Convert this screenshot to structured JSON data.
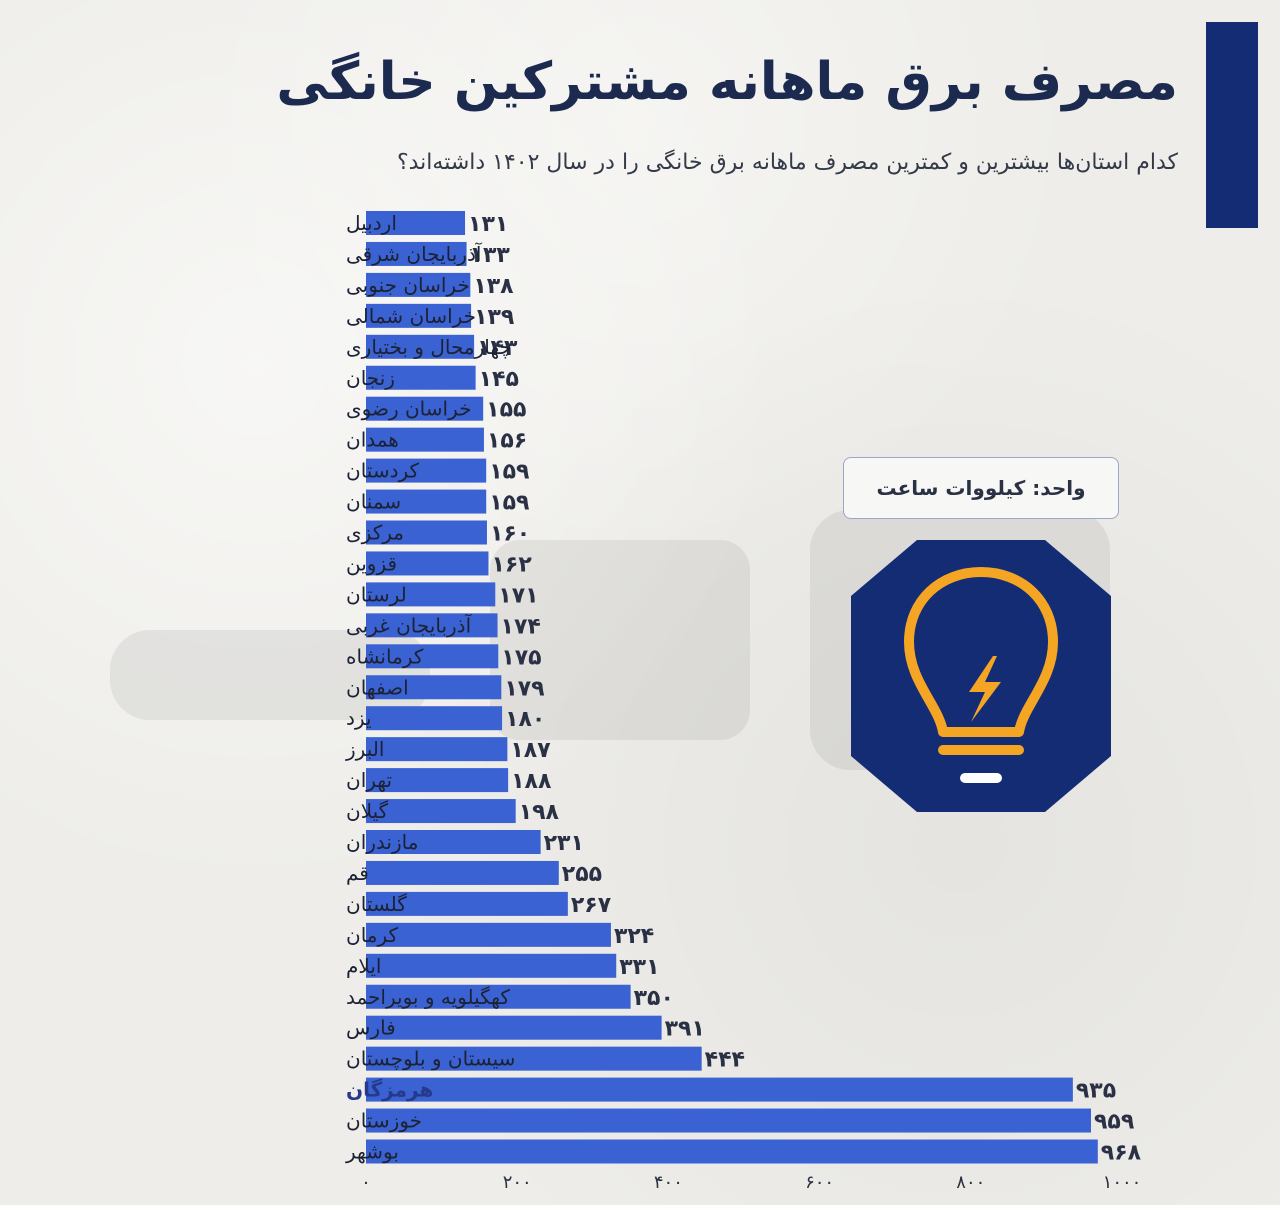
{
  "header": {
    "title": "مصرف برق ماهانه مشترکین خانگی",
    "subtitle": "کدام استان‌ها بیشترین و کمترین مصرف ماهانه برق خانگی را در سال ۱۴۰۲ داشته‌اند؟"
  },
  "unit_box": {
    "label": "واحد: کیلووات ساعت"
  },
  "icons": {
    "badge": "lightbulb-bolt-icon"
  },
  "colors": {
    "bar": "#3a62d2",
    "accent_bar": "#132c74",
    "badge_bg": "#132c74",
    "bulb": "#f5a524",
    "highlight_label": "#253a8a"
  },
  "chart_data": {
    "type": "bar",
    "orientation": "horizontal",
    "categories": [
      "اردبیل",
      "آذربایجان شرقی",
      "خراسان جنوبی",
      "خراسان شمالی",
      "چهارمحال و بختیاری",
      "زنجان",
      "خراسان رضوی",
      "همدان",
      "کردستان",
      "سمنان",
      "مرکزی",
      "قزوین",
      "لرستان",
      "آذربایجان غربی",
      "کرمانشاه",
      "اصفهان",
      "یزد",
      "البرز",
      "تهران",
      "گیلان",
      "مازندران",
      "قم",
      "گلستان",
      "کرمان",
      "ایلام",
      "کهگیلویه و بویراحمد",
      "فارس",
      "سیستان و بلوچستان",
      "هرمزگان",
      "خوزستان",
      "بوشهر"
    ],
    "values": [
      131,
      133,
      138,
      139,
      143,
      145,
      155,
      156,
      159,
      159,
      160,
      162,
      171,
      174,
      175,
      179,
      180,
      187,
      188,
      198,
      231,
      255,
      267,
      324,
      331,
      350,
      391,
      444,
      935,
      959,
      968
    ],
    "value_labels": [
      "۱۳۱",
      "۱۳۳",
      "۱۳۸",
      "۱۳۹",
      "۱۴۳",
      "۱۴۵",
      "۱۵۵",
      "۱۵۶",
      "۱۵۹",
      "۱۵۹",
      "۱۶۰",
      "۱۶۲",
      "۱۷۱",
      "۱۷۴",
      "۱۷۵",
      "۱۷۹",
      "۱۸۰",
      "۱۸۷",
      "۱۸۸",
      "۱۹۸",
      "۲۳۱",
      "۲۵۵",
      "۲۶۷",
      "۳۲۴",
      "۳۳۱",
      "۳۵۰",
      "۳۹۱",
      "۴۴۴",
      "۹۳۵",
      "۹۵۹",
      "۹۶۸"
    ],
    "highlighted_category": "هرمزگان",
    "xlim": [
      0,
      1000
    ],
    "x_ticks": [
      0,
      200,
      400,
      600,
      800,
      1000
    ],
    "x_tick_labels": [
      "۰",
      "۲۰۰",
      "۴۰۰",
      "۶۰۰",
      "۸۰۰",
      "۱۰۰۰"
    ],
    "grid": false,
    "legend": "none"
  }
}
